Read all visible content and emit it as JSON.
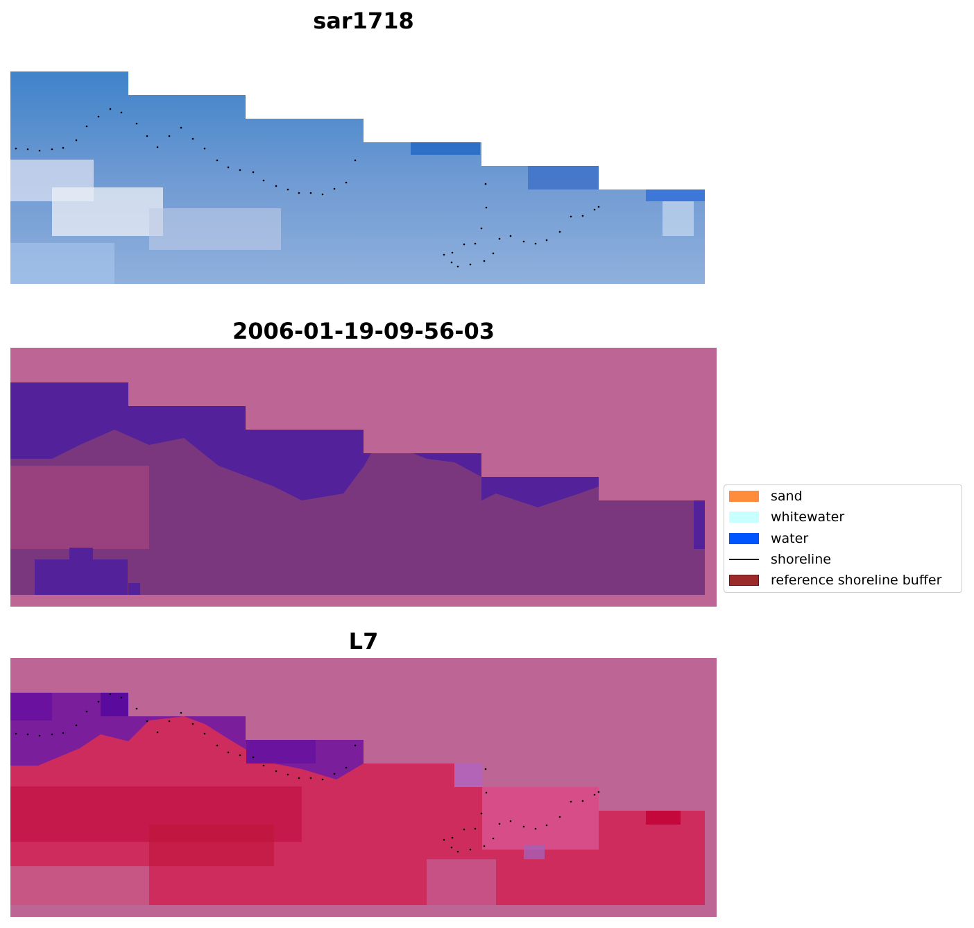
{
  "panels": [
    {
      "title": "sar1718"
    },
    {
      "title": "2006-01-19-09-56-03"
    },
    {
      "title": "L7"
    }
  ],
  "legend": {
    "items": [
      {
        "label": "sand",
        "color": "#ff8c3c"
      },
      {
        "label": "whitewater",
        "color": "#c8ffff"
      },
      {
        "label": "water",
        "color": "#0055ff"
      },
      {
        "label": "shoreline",
        "color": "#000000"
      },
      {
        "label": "reference shoreline buffer",
        "color": "#9b2a2a"
      }
    ]
  }
}
